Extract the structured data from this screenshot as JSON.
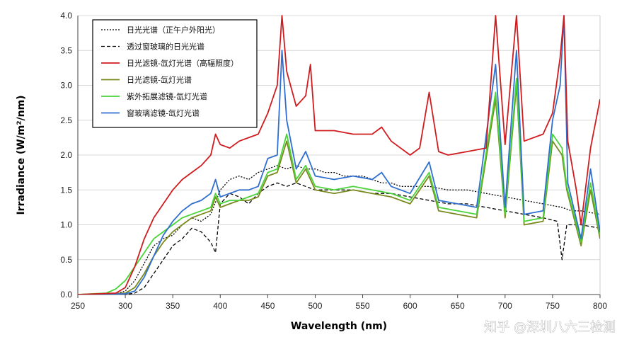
{
  "chart_data": {
    "type": "line",
    "xlabel": "Wavelength (nm)",
    "ylabel": "Irradiance (W/m²/nm)",
    "xlim": [
      250,
      800
    ],
    "ylim": [
      0,
      4.0
    ],
    "x_ticks": [
      "250",
      "300",
      "350",
      "400",
      "450",
      "500",
      "550",
      "600",
      "650",
      "700",
      "750",
      "800"
    ],
    "y_ticks": [
      "0.0",
      "0.5",
      "1.0",
      "1.5",
      "2.0",
      "2.5",
      "3.0",
      "3.5",
      "4.0"
    ],
    "grid": "horizontal",
    "legend_position": "top-left",
    "series": [
      {
        "name": "日光光谱（正午户外阳光）",
        "color": "#000000",
        "dash": "dotted",
        "points": [
          [
            250,
            0
          ],
          [
            290,
            0.01
          ],
          [
            300,
            0.05
          ],
          [
            310,
            0.2
          ],
          [
            320,
            0.45
          ],
          [
            330,
            0.7
          ],
          [
            340,
            0.8
          ],
          [
            350,
            0.85
          ],
          [
            360,
            1.0
          ],
          [
            370,
            1.1
          ],
          [
            380,
            1.05
          ],
          [
            390,
            1.15
          ],
          [
            400,
            1.5
          ],
          [
            410,
            1.65
          ],
          [
            420,
            1.7
          ],
          [
            430,
            1.65
          ],
          [
            440,
            1.75
          ],
          [
            450,
            1.8
          ],
          [
            460,
            1.85
          ],
          [
            470,
            1.8
          ],
          [
            480,
            1.85
          ],
          [
            490,
            1.8
          ],
          [
            500,
            1.8
          ],
          [
            510,
            1.75
          ],
          [
            520,
            1.75
          ],
          [
            530,
            1.7
          ],
          [
            540,
            1.7
          ],
          [
            550,
            1.7
          ],
          [
            560,
            1.65
          ],
          [
            570,
            1.6
          ],
          [
            580,
            1.6
          ],
          [
            590,
            1.55
          ],
          [
            600,
            1.55
          ],
          [
            620,
            1.55
          ],
          [
            640,
            1.5
          ],
          [
            660,
            1.5
          ],
          [
            680,
            1.45
          ],
          [
            700,
            1.4
          ],
          [
            720,
            1.35
          ],
          [
            740,
            1.3
          ],
          [
            760,
            1.25
          ],
          [
            770,
            1.2
          ],
          [
            780,
            1.2
          ],
          [
            800,
            1.15
          ]
        ]
      },
      {
        "name": "透过窗玻璃的日光光谱",
        "color": "#000000",
        "dash": "dashed",
        "points": [
          [
            250,
            0
          ],
          [
            300,
            0
          ],
          [
            310,
            0.02
          ],
          [
            320,
            0.1
          ],
          [
            330,
            0.3
          ],
          [
            340,
            0.5
          ],
          [
            350,
            0.7
          ],
          [
            360,
            0.8
          ],
          [
            370,
            0.95
          ],
          [
            380,
            0.9
          ],
          [
            390,
            0.75
          ],
          [
            395,
            0.6
          ],
          [
            400,
            1.3
          ],
          [
            410,
            1.45
          ],
          [
            420,
            1.4
          ],
          [
            430,
            1.3
          ],
          [
            440,
            1.45
          ],
          [
            450,
            1.55
          ],
          [
            460,
            1.6
          ],
          [
            470,
            1.55
          ],
          [
            480,
            1.6
          ],
          [
            490,
            1.55
          ],
          [
            500,
            1.5
          ],
          [
            520,
            1.5
          ],
          [
            540,
            1.5
          ],
          [
            560,
            1.45
          ],
          [
            580,
            1.45
          ],
          [
            600,
            1.4
          ],
          [
            620,
            1.35
          ],
          [
            640,
            1.3
          ],
          [
            660,
            1.3
          ],
          [
            680,
            1.25
          ],
          [
            700,
            1.2
          ],
          [
            720,
            1.15
          ],
          [
            740,
            1.1
          ],
          [
            755,
            1.05
          ],
          [
            760,
            0.5
          ],
          [
            765,
            1.0
          ],
          [
            780,
            1.0
          ],
          [
            800,
            0.95
          ]
        ]
      },
      {
        "name": "日光滤镜-氙灯光谱（高辐照度）",
        "color": "#d01c1f",
        "dash": "solid",
        "points": [
          [
            250,
            0
          ],
          [
            290,
            0.02
          ],
          [
            300,
            0.1
          ],
          [
            310,
            0.4
          ],
          [
            320,
            0.8
          ],
          [
            330,
            1.1
          ],
          [
            340,
            1.3
          ],
          [
            350,
            1.5
          ],
          [
            360,
            1.65
          ],
          [
            370,
            1.75
          ],
          [
            380,
            1.85
          ],
          [
            390,
            2.0
          ],
          [
            395,
            2.3
          ],
          [
            400,
            2.15
          ],
          [
            410,
            2.1
          ],
          [
            420,
            2.2
          ],
          [
            430,
            2.25
          ],
          [
            440,
            2.3
          ],
          [
            450,
            2.6
          ],
          [
            460,
            3.0
          ],
          [
            465,
            4.0
          ],
          [
            470,
            3.2
          ],
          [
            480,
            2.7
          ],
          [
            490,
            2.85
          ],
          [
            495,
            3.3
          ],
          [
            500,
            2.35
          ],
          [
            520,
            2.35
          ],
          [
            540,
            2.3
          ],
          [
            560,
            2.3
          ],
          [
            570,
            2.4
          ],
          [
            580,
            2.2
          ],
          [
            600,
            2.0
          ],
          [
            610,
            2.1
          ],
          [
            620,
            2.9
          ],
          [
            630,
            2.05
          ],
          [
            640,
            2.0
          ],
          [
            660,
            2.05
          ],
          [
            680,
            2.1
          ],
          [
            690,
            4.0
          ],
          [
            700,
            2.15
          ],
          [
            712,
            4.0
          ],
          [
            720,
            2.2
          ],
          [
            740,
            2.3
          ],
          [
            750,
            2.6
          ],
          [
            758,
            3.4
          ],
          [
            762,
            4.0
          ],
          [
            766,
            2.2
          ],
          [
            775,
            1.5
          ],
          [
            780,
            1.0
          ],
          [
            790,
            2.1
          ],
          [
            800,
            2.8
          ]
        ]
      },
      {
        "name": "日光滤镜-氙灯光谱",
        "color": "#7a8a1e",
        "dash": "solid",
        "points": [
          [
            250,
            0
          ],
          [
            300,
            0.02
          ],
          [
            310,
            0.1
          ],
          [
            320,
            0.3
          ],
          [
            330,
            0.55
          ],
          [
            340,
            0.75
          ],
          [
            350,
            0.9
          ],
          [
            360,
            1.0
          ],
          [
            370,
            1.1
          ],
          [
            380,
            1.15
          ],
          [
            390,
            1.2
          ],
          [
            395,
            1.4
          ],
          [
            400,
            1.25
          ],
          [
            410,
            1.3
          ],
          [
            420,
            1.35
          ],
          [
            430,
            1.35
          ],
          [
            440,
            1.4
          ],
          [
            450,
            1.7
          ],
          [
            460,
            1.75
          ],
          [
            470,
            2.2
          ],
          [
            480,
            1.6
          ],
          [
            490,
            1.8
          ],
          [
            500,
            1.5
          ],
          [
            520,
            1.45
          ],
          [
            540,
            1.5
          ],
          [
            560,
            1.45
          ],
          [
            580,
            1.4
          ],
          [
            600,
            1.3
          ],
          [
            620,
            1.7
          ],
          [
            630,
            1.2
          ],
          [
            650,
            1.15
          ],
          [
            670,
            1.1
          ],
          [
            690,
            2.8
          ],
          [
            700,
            1.1
          ],
          [
            712,
            3.0
          ],
          [
            720,
            1.0
          ],
          [
            740,
            1.05
          ],
          [
            750,
            2.2
          ],
          [
            760,
            2.0
          ],
          [
            765,
            1.5
          ],
          [
            780,
            0.7
          ],
          [
            790,
            1.5
          ],
          [
            800,
            0.8
          ]
        ]
      },
      {
        "name": "紫外拓展滤镜-氙灯光谱",
        "color": "#4ad43a",
        "dash": "solid",
        "points": [
          [
            250,
            0
          ],
          [
            280,
            0.02
          ],
          [
            290,
            0.08
          ],
          [
            300,
            0.2
          ],
          [
            310,
            0.4
          ],
          [
            320,
            0.6
          ],
          [
            330,
            0.8
          ],
          [
            340,
            0.9
          ],
          [
            350,
            1.0
          ],
          [
            360,
            1.1
          ],
          [
            370,
            1.15
          ],
          [
            380,
            1.2
          ],
          [
            390,
            1.25
          ],
          [
            395,
            1.45
          ],
          [
            400,
            1.3
          ],
          [
            410,
            1.35
          ],
          [
            420,
            1.35
          ],
          [
            430,
            1.4
          ],
          [
            440,
            1.45
          ],
          [
            450,
            1.75
          ],
          [
            460,
            1.8
          ],
          [
            470,
            2.3
          ],
          [
            480,
            1.65
          ],
          [
            490,
            1.85
          ],
          [
            500,
            1.55
          ],
          [
            520,
            1.5
          ],
          [
            540,
            1.55
          ],
          [
            560,
            1.5
          ],
          [
            580,
            1.45
          ],
          [
            600,
            1.35
          ],
          [
            620,
            1.75
          ],
          [
            630,
            1.25
          ],
          [
            650,
            1.2
          ],
          [
            670,
            1.15
          ],
          [
            690,
            2.9
          ],
          [
            700,
            1.15
          ],
          [
            712,
            3.1
          ],
          [
            720,
            1.05
          ],
          [
            740,
            1.1
          ],
          [
            750,
            2.3
          ],
          [
            760,
            2.1
          ],
          [
            765,
            1.55
          ],
          [
            780,
            0.75
          ],
          [
            790,
            1.6
          ],
          [
            800,
            0.85
          ]
        ]
      },
      {
        "name": "窗玻璃滤镜-氙灯光谱",
        "color": "#2f6fd0",
        "dash": "solid",
        "points": [
          [
            250,
            0
          ],
          [
            300,
            0.01
          ],
          [
            310,
            0.05
          ],
          [
            320,
            0.25
          ],
          [
            330,
            0.55
          ],
          [
            340,
            0.85
          ],
          [
            350,
            1.05
          ],
          [
            360,
            1.2
          ],
          [
            370,
            1.3
          ],
          [
            380,
            1.35
          ],
          [
            390,
            1.45
          ],
          [
            395,
            1.65
          ],
          [
            400,
            1.4
          ],
          [
            410,
            1.45
          ],
          [
            420,
            1.5
          ],
          [
            430,
            1.5
          ],
          [
            440,
            1.55
          ],
          [
            450,
            1.95
          ],
          [
            460,
            2.0
          ],
          [
            465,
            3.5
          ],
          [
            470,
            2.5
          ],
          [
            480,
            1.8
          ],
          [
            490,
            2.05
          ],
          [
            500,
            1.7
          ],
          [
            520,
            1.65
          ],
          [
            540,
            1.7
          ],
          [
            560,
            1.65
          ],
          [
            570,
            1.75
          ],
          [
            580,
            1.55
          ],
          [
            600,
            1.45
          ],
          [
            620,
            1.9
          ],
          [
            630,
            1.35
          ],
          [
            650,
            1.3
          ],
          [
            670,
            1.25
          ],
          [
            690,
            3.3
          ],
          [
            700,
            1.25
          ],
          [
            712,
            3.5
          ],
          [
            720,
            1.15
          ],
          [
            740,
            1.2
          ],
          [
            750,
            2.5
          ],
          [
            758,
            3.0
          ],
          [
            762,
            4.0
          ],
          [
            766,
            1.6
          ],
          [
            780,
            0.8
          ],
          [
            790,
            1.8
          ],
          [
            800,
            0.9
          ]
        ]
      }
    ]
  },
  "watermark": "知乎 @深圳八六三检测"
}
